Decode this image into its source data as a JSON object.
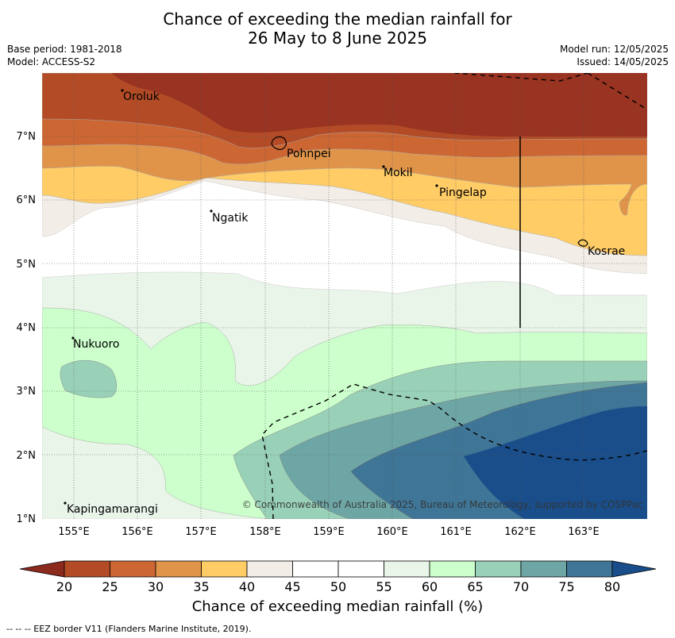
{
  "title": {
    "line1": "Chance of exceeding the median rainfall for",
    "line2": "26 May to 8 June 2025"
  },
  "meta": {
    "base_period": "Base period: 1981-2018",
    "model": "Model: ACCESS-S2",
    "model_run": "Model run: 12/05/2025",
    "issued": "Issued: 14/05/2025"
  },
  "map": {
    "lon_range": [
      154.5,
      164.0
    ],
    "lat_range": [
      1.0,
      8.0
    ],
    "x_ticks": [
      "155°E",
      "156°E",
      "157°E",
      "158°E",
      "159°E",
      "160°E",
      "161°E",
      "162°E",
      "163°E"
    ],
    "y_ticks": [
      "1°N",
      "2°N",
      "3°N",
      "4°N",
      "5°N",
      "6°N",
      "7°N"
    ],
    "places": [
      "Oroluk",
      "Pohnpei",
      "Mokil",
      "Pingelap",
      "Ngatik",
      "Kosrae",
      "Nukuoro",
      "Kapingamarangi"
    ],
    "copyright": "© Commonwealth of Australia 2025, Bureau of Meteorology, supported by COSPPac"
  },
  "colorbar": {
    "labels": [
      "20",
      "25",
      "30",
      "35",
      "40",
      "45",
      "50",
      "55",
      "60",
      "65",
      "70",
      "75",
      "80"
    ],
    "colors": [
      "#8c2a1e",
      "#b34c26",
      "#cc6633",
      "#e0944a",
      "#ffcc66",
      "#f2ede6",
      "#ffffff",
      "#ffffff",
      "#eaf5ea",
      "#ccffcc",
      "#99d1b8",
      "#6ea6a6",
      "#3f7596",
      "#1a4e8a"
    ],
    "title": "Chance of exceeding median rainfall (%)"
  },
  "footnote": "--  --  -- EEZ border V11 (Flanders Marine Institute, 2019)."
}
